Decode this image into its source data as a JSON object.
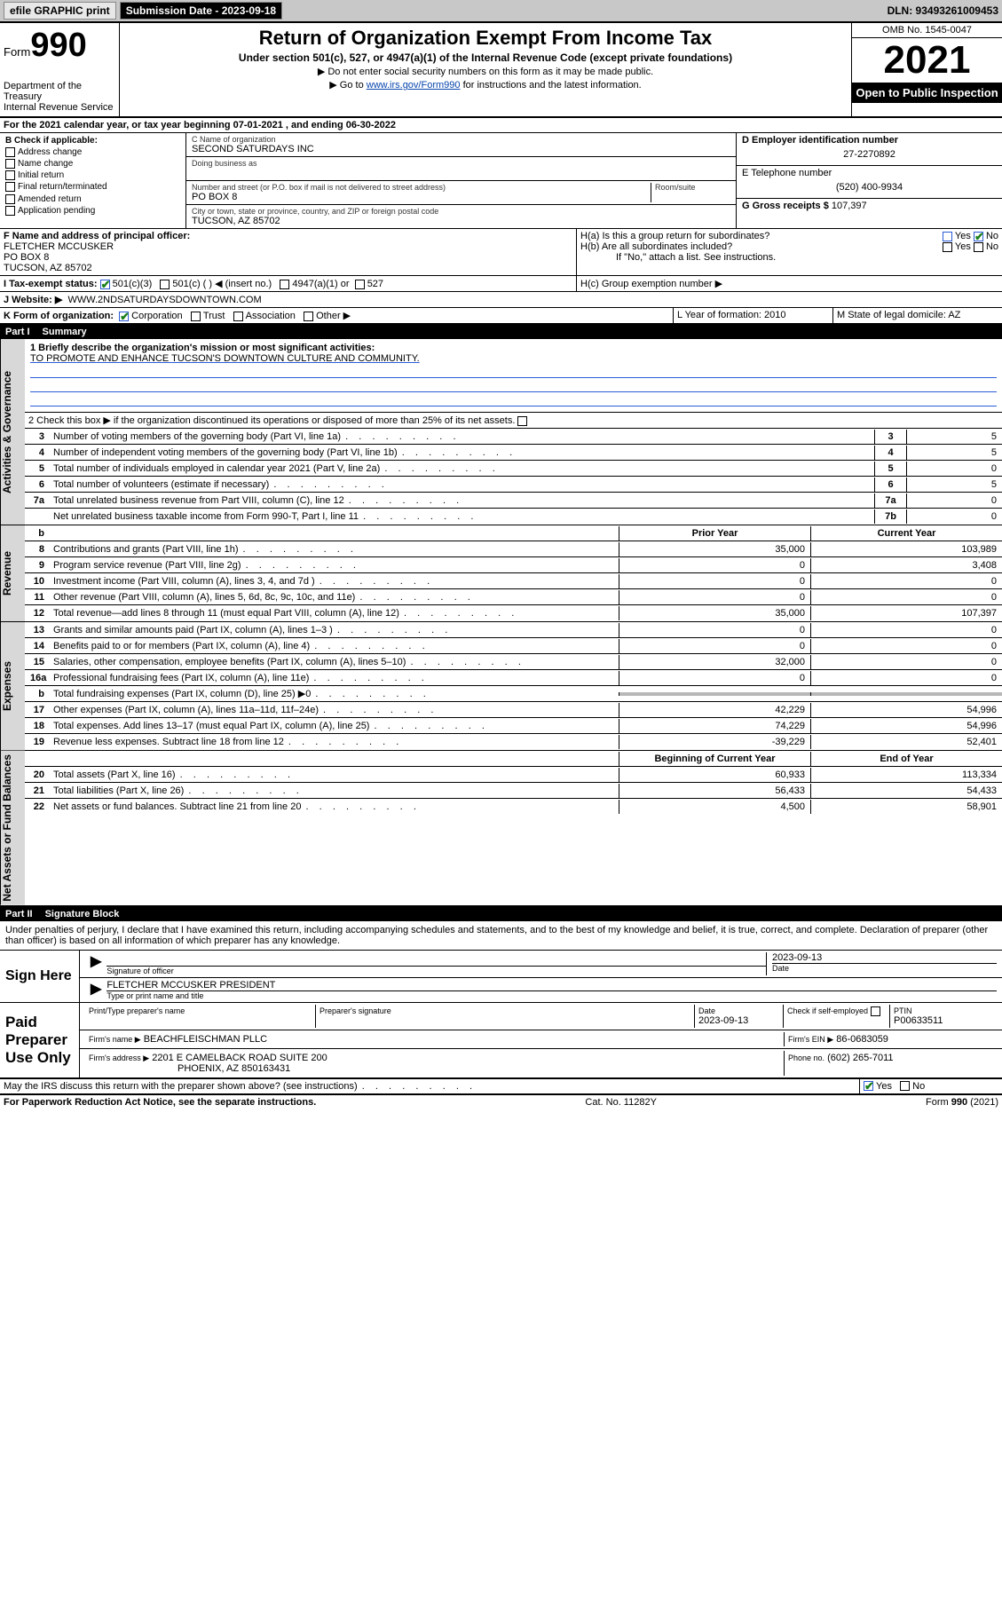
{
  "topbar": {
    "efile": "efile GRAPHIC print",
    "submission_label": "Submission Date - 2023-09-18",
    "dln": "DLN: 93493261009453"
  },
  "header": {
    "form_prefix": "Form",
    "form_number": "990",
    "dept": "Department of the Treasury",
    "irs": "Internal Revenue Service",
    "title": "Return of Organization Exempt From Income Tax",
    "subtitle": "Under section 501(c), 527, or 4947(a)(1) of the Internal Revenue Code (except private foundations)",
    "note1": "▶ Do not enter social security numbers on this form as it may be made public.",
    "note2_pre": "▶ Go to ",
    "note2_link": "www.irs.gov/Form990",
    "note2_post": " for instructions and the latest information.",
    "omb": "OMB No. 1545-0047",
    "year": "2021",
    "open": "Open to Public Inspection"
  },
  "line_a": "For the 2021 calendar year, or tax year beginning 07-01-2021    , and ending 06-30-2022",
  "b": {
    "label": "B Check if applicable:",
    "items": [
      "Address change",
      "Name change",
      "Initial return",
      "Final return/terminated",
      "Amended return",
      "Application pending"
    ]
  },
  "c": {
    "name_lbl": "C Name of organization",
    "name": "SECOND SATURDAYS INC",
    "dba_lbl": "Doing business as",
    "street_lbl": "Number and street (or P.O. box if mail is not delivered to street address)",
    "street": "PO BOX 8",
    "room_lbl": "Room/suite",
    "city_lbl": "City or town, state or province, country, and ZIP or foreign postal code",
    "city": "TUCSON, AZ  85702"
  },
  "d": {
    "lbl": "D Employer identification number",
    "val": "27-2270892"
  },
  "e": {
    "lbl": "E Telephone number",
    "val": "(520) 400-9934"
  },
  "g": {
    "lbl": "G Gross receipts $",
    "val": "107,397"
  },
  "f": {
    "lbl": "F  Name and address of principal officer:",
    "name": "FLETCHER MCCUSKER",
    "addr1": "PO BOX 8",
    "addr2": "TUCSON, AZ  85702"
  },
  "h": {
    "a_lbl": "H(a)  Is this a group return for subordinates?",
    "b_lbl": "H(b)  Are all subordinates included?",
    "b_note": "If \"No,\" attach a list. See instructions.",
    "c_lbl": "H(c)  Group exemption number ▶",
    "yes": "Yes",
    "no": "No"
  },
  "i": {
    "lbl": "I    Tax-exempt status:",
    "o1": "501(c)(3)",
    "o2": "501(c) (  ) ◀ (insert no.)",
    "o3": "4947(a)(1) or",
    "o4": "527"
  },
  "j": {
    "lbl": "J   Website: ▶",
    "val": "WWW.2NDSATURDAYSDOWNTOWN.COM"
  },
  "k": {
    "lbl": "K Form of organization:",
    "o1": "Corporation",
    "o2": "Trust",
    "o3": "Association",
    "o4": "Other ▶"
  },
  "l": {
    "lbl": "L Year of formation: 2010"
  },
  "m": {
    "lbl": "M State of legal domicile: AZ"
  },
  "part1": {
    "num": "Part I",
    "title": "Summary"
  },
  "summary": {
    "q1_lbl": "1   Briefly describe the organization's mission or most significant activities:",
    "q1_val": "TO PROMOTE AND ENHANCE TUCSON'S DOWNTOWN CULTURE AND COMMUNITY.",
    "q2": "2    Check this box ▶        if the organization discontinued its operations or disposed of more than 25% of its net assets."
  },
  "vtabs": {
    "ag": "Activities & Governance",
    "rev": "Revenue",
    "exp": "Expenses",
    "nab": "Net Assets or Fund Balances"
  },
  "col_hdr": {
    "prior": "Prior Year",
    "curr": "Current Year",
    "beg": "Beginning of Current Year",
    "end": "End of Year"
  },
  "rows_gov": [
    {
      "n": "3",
      "t": "Number of voting members of the governing body (Part VI, line 1a)",
      "b": "3",
      "v": "5"
    },
    {
      "n": "4",
      "t": "Number of independent voting members of the governing body (Part VI, line 1b)",
      "b": "4",
      "v": "5"
    },
    {
      "n": "5",
      "t": "Total number of individuals employed in calendar year 2021 (Part V, line 2a)",
      "b": "5",
      "v": "0"
    },
    {
      "n": "6",
      "t": "Total number of volunteers (estimate if necessary)",
      "b": "6",
      "v": "5"
    },
    {
      "n": "7a",
      "t": "Total unrelated business revenue from Part VIII, column (C), line 12",
      "b": "7a",
      "v": "0"
    },
    {
      "n": "",
      "t": "Net unrelated business taxable income from Form 990-T, Part I, line 11",
      "b": "7b",
      "v": "0"
    }
  ],
  "rows_rev": [
    {
      "n": "8",
      "t": "Contributions and grants (Part VIII, line 1h)",
      "p": "35,000",
      "c": "103,989"
    },
    {
      "n": "9",
      "t": "Program service revenue (Part VIII, line 2g)",
      "p": "0",
      "c": "3,408"
    },
    {
      "n": "10",
      "t": "Investment income (Part VIII, column (A), lines 3, 4, and 7d )",
      "p": "0",
      "c": "0"
    },
    {
      "n": "11",
      "t": "Other revenue (Part VIII, column (A), lines 5, 6d, 8c, 9c, 10c, and 11e)",
      "p": "0",
      "c": "0"
    },
    {
      "n": "12",
      "t": "Total revenue—add lines 8 through 11 (must equal Part VIII, column (A), line 12)",
      "p": "35,000",
      "c": "107,397"
    }
  ],
  "rows_exp": [
    {
      "n": "13",
      "t": "Grants and similar amounts paid (Part IX, column (A), lines 1–3 )",
      "p": "0",
      "c": "0"
    },
    {
      "n": "14",
      "t": "Benefits paid to or for members (Part IX, column (A), line 4)",
      "p": "0",
      "c": "0"
    },
    {
      "n": "15",
      "t": "Salaries, other compensation, employee benefits (Part IX, column (A), lines 5–10)",
      "p": "32,000",
      "c": "0"
    },
    {
      "n": "16a",
      "t": "Professional fundraising fees (Part IX, column (A), line 11e)",
      "p": "0",
      "c": "0"
    },
    {
      "n": "b",
      "t": "Total fundraising expenses (Part IX, column (D), line 25) ▶0",
      "p": "",
      "c": "",
      "grey": true
    },
    {
      "n": "17",
      "t": "Other expenses (Part IX, column (A), lines 11a–11d, 11f–24e)",
      "p": "42,229",
      "c": "54,996"
    },
    {
      "n": "18",
      "t": "Total expenses. Add lines 13–17 (must equal Part IX, column (A), line 25)",
      "p": "74,229",
      "c": "54,996"
    },
    {
      "n": "19",
      "t": "Revenue less expenses. Subtract line 18 from line 12",
      "p": "-39,229",
      "c": "52,401"
    }
  ],
  "rows_nab": [
    {
      "n": "20",
      "t": "Total assets (Part X, line 16)",
      "p": "60,933",
      "c": "113,334"
    },
    {
      "n": "21",
      "t": "Total liabilities (Part X, line 26)",
      "p": "56,433",
      "c": "54,433"
    },
    {
      "n": "22",
      "t": "Net assets or fund balances. Subtract line 21 from line 20",
      "p": "4,500",
      "c": "58,901"
    }
  ],
  "part2": {
    "num": "Part II",
    "title": "Signature Block"
  },
  "jurat": "Under penalties of perjury, I declare that I have examined this return, including accompanying schedules and statements, and to the best of my knowledge and belief, it is true, correct, and complete. Declaration of preparer (other than officer) is based on all information of which preparer has any knowledge.",
  "sign": {
    "here": "Sign Here",
    "sig_officer_lbl": "Signature of officer",
    "date_lbl": "Date",
    "date": "2023-09-13",
    "name": "FLETCHER MCCUSKER PRESIDENT",
    "name_lbl": "Type or print name and title"
  },
  "paid": {
    "label": "Paid Preparer Use Only",
    "col1": "Print/Type preparer's name",
    "col2": "Preparer's signature",
    "col3_lbl": "Date",
    "col3": "2023-09-13",
    "col4_lbl": "Check        if self-employed",
    "col5_lbl": "PTIN",
    "col5": "P00633511",
    "firm_name_lbl": "Firm's name     ▶",
    "firm_name": "BEACHFLEISCHMAN PLLC",
    "firm_ein_lbl": "Firm's EIN ▶",
    "firm_ein": "86-0683059",
    "firm_addr_lbl": "Firm's address ▶",
    "firm_addr1": "2201 E CAMELBACK ROAD SUITE 200",
    "firm_addr2": "PHOENIX, AZ  850163431",
    "phone_lbl": "Phone no.",
    "phone": "(602) 265-7011"
  },
  "may_discuss": "May the IRS discuss this return with the preparer shown above? (see instructions)",
  "footer": {
    "l": "For Paperwork Reduction Act Notice, see the separate instructions.",
    "m": "Cat. No. 11282Y",
    "r": "Form 990 (2021)"
  }
}
